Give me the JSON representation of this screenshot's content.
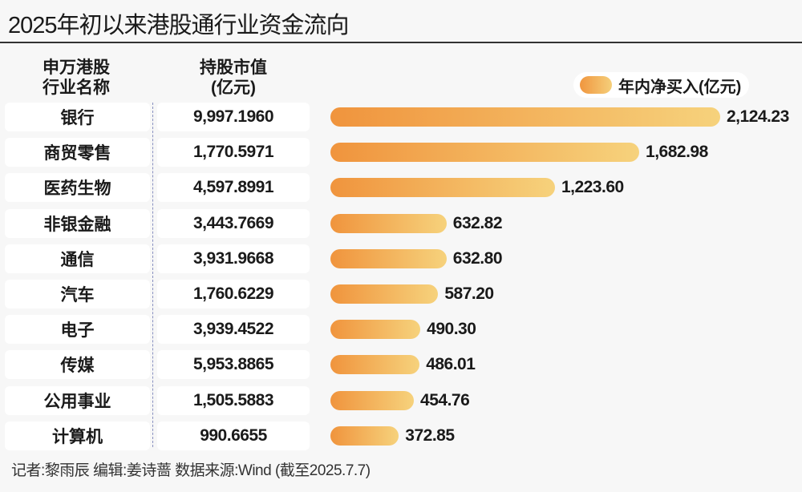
{
  "chart_data": {
    "type": "bar",
    "orientation": "horizontal",
    "title": "2025年初以来港股通行业资金流向",
    "column_headers": {
      "industry_line1": "申万港股",
      "industry_line2": "行业名称",
      "market_value_line1": "持股市值",
      "market_value_line2": "(亿元)"
    },
    "categories": [
      "银行",
      "商贸零售",
      "医药生物",
      "非银金融",
      "通信",
      "汽车",
      "电子",
      "传媒",
      "公用事业",
      "计算机"
    ],
    "market_values": [
      "9,997.1960",
      "1,770.5971",
      "4,597.8991",
      "3,443.7669",
      "3,931.9668",
      "1,760.6229",
      "3,939.4522",
      "5,953.8865",
      "1,505.5883",
      "990.6655"
    ],
    "series": [
      {
        "name": "年内净买入(亿元)",
        "values": [
          2124.23,
          1682.98,
          1223.6,
          632.82,
          632.8,
          587.2,
          490.3,
          486.01,
          454.76,
          372.85
        ]
      }
    ],
    "value_labels": [
      "2,124.23",
      "1,682.98",
      "1,223.60",
      "632.82",
      "632.80",
      "587.20",
      "490.30",
      "486.01",
      "454.76",
      "372.85"
    ],
    "legend_position": "top-right",
    "colors": {
      "bar_start": "#f0943d",
      "bar_end": "#f6d27c"
    },
    "grid": false
  },
  "footer": "记者:黎雨辰  编辑:姜诗蔷  数据来源:Wind (截至2025.7.7)"
}
